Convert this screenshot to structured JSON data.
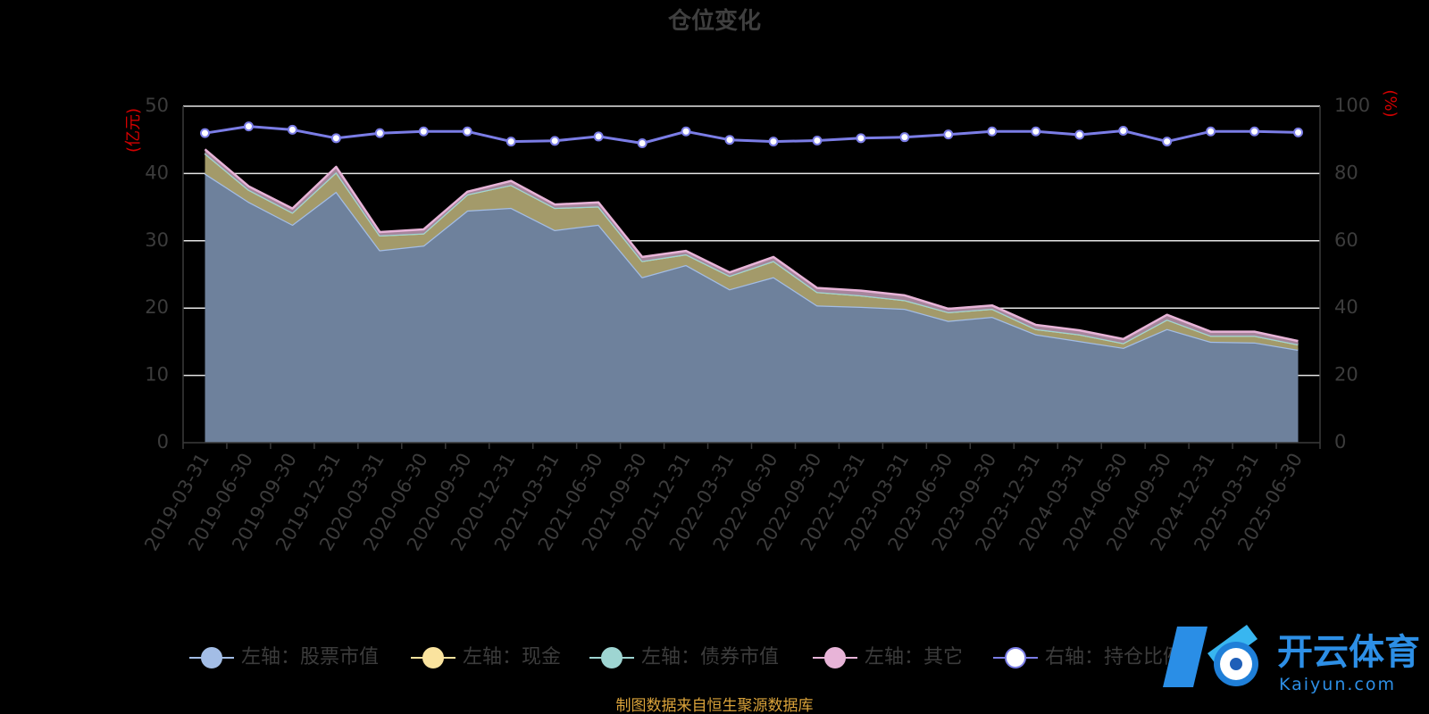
{
  "chart_data": {
    "type": "area",
    "title": "仓位变化",
    "left_unit": "(亿元)",
    "right_unit": "(%)",
    "categories": [
      "2019-03-31",
      "2019-06-30",
      "2019-09-30",
      "2019-12-31",
      "2020-03-31",
      "2020-06-30",
      "2020-09-30",
      "2020-12-31",
      "2021-03-31",
      "2021-06-30",
      "2021-09-30",
      "2021-12-31",
      "2022-03-31",
      "2022-06-30",
      "2022-09-30",
      "2022-12-31",
      "2023-03-31",
      "2023-06-30",
      "2023-09-30",
      "2023-12-31",
      "2024-03-31",
      "2024-06-30",
      "2024-09-30",
      "2024-12-31",
      "2025-03-31",
      "2025-06-30"
    ],
    "ylim_left": [
      0,
      50
    ],
    "yticks_left": [
      0,
      10,
      20,
      30,
      40,
      50
    ],
    "ylim_right": [
      0,
      100
    ],
    "yticks_right": [
      0,
      20,
      40,
      60,
      80,
      100
    ],
    "grid": true,
    "legend_position": "bottom",
    "series": [
      {
        "name": "左轴：股票市值",
        "axis": "left",
        "stack": true,
        "color": "#a3bde6",
        "fill": "#6e819c",
        "values": [
          40.0,
          35.8,
          32.4,
          37.3,
          28.6,
          29.3,
          34.5,
          34.9,
          31.6,
          32.4,
          24.6,
          26.4,
          22.8,
          24.6,
          20.4,
          20.2,
          19.9,
          18.1,
          18.7,
          16.1,
          15.1,
          14.1,
          16.9,
          15.0,
          14.9,
          13.8
        ]
      },
      {
        "name": "左轴：现金",
        "axis": "left",
        "stack": true,
        "color": "#fae39e",
        "fill": "#a39a6a",
        "values": [
          3.0,
          1.8,
          1.8,
          2.9,
          2.2,
          1.8,
          2.4,
          3.4,
          3.3,
          2.7,
          2.4,
          1.6,
          2.0,
          2.4,
          2.0,
          1.7,
          1.3,
          1.3,
          1.2,
          0.8,
          1.0,
          0.7,
          1.4,
          0.9,
          1.0,
          0.8
        ]
      },
      {
        "name": "左轴：债券市值",
        "axis": "left",
        "stack": true,
        "color": "#9ed5d2",
        "fill": "#7e9b99",
        "values": [
          0,
          0,
          0,
          0,
          0,
          0,
          0,
          0,
          0,
          0,
          0,
          0,
          0,
          0,
          0,
          0,
          0,
          0,
          0,
          0,
          0,
          0,
          0,
          0,
          0,
          0
        ]
      },
      {
        "name": "左轴：其它",
        "axis": "left",
        "stack": true,
        "color": "#e8b4d8",
        "fill": "#a6859b",
        "values": [
          0.6,
          0.5,
          0.6,
          0.8,
          0.5,
          0.6,
          0.4,
          0.6,
          0.5,
          0.6,
          0.6,
          0.5,
          0.5,
          0.6,
          0.6,
          0.7,
          0.7,
          0.5,
          0.5,
          0.6,
          0.6,
          0.6,
          0.7,
          0.6,
          0.6,
          0.5
        ]
      },
      {
        "name": "右轴：持仓比例",
        "axis": "right",
        "stack": false,
        "color": "#7b7de6",
        "values": [
          92.0,
          94.0,
          93.0,
          90.5,
          92.0,
          92.5,
          92.5,
          89.5,
          89.7,
          91.0,
          89.0,
          92.5,
          90.0,
          89.5,
          89.8,
          90.5,
          90.8,
          91.6,
          92.5,
          92.5,
          91.5,
          92.7,
          89.5,
          92.5,
          92.5,
          92.2
        ]
      }
    ]
  },
  "source_text": "制图数据来自恒生聚源数据库",
  "watermark": {
    "brand": "开云体育",
    "domain": "Kaiyun.com"
  }
}
